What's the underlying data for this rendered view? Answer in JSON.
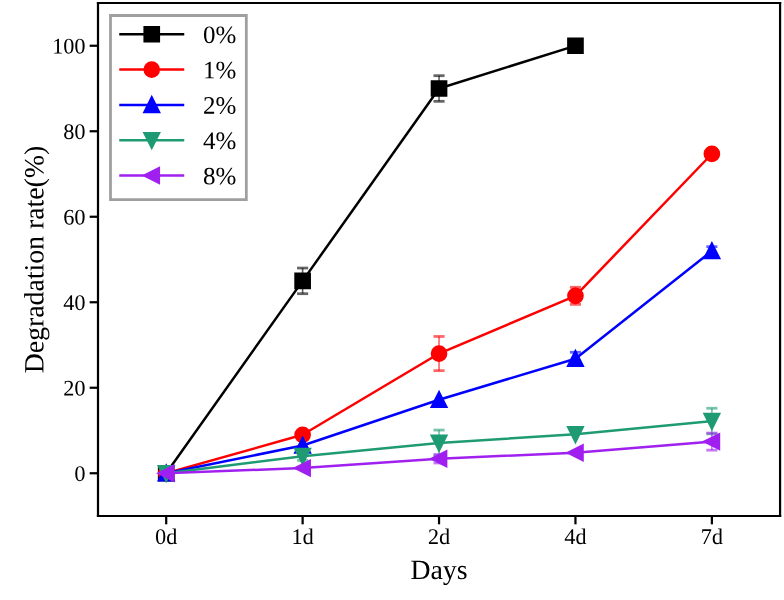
{
  "chart_data": {
    "type": "line",
    "xlabel": "Days",
    "ylabel": "Degradation rate(%)",
    "categories": [
      "0d",
      "1d",
      "2d",
      "4d",
      "7d"
    ],
    "ylim": [
      -10,
      110
    ],
    "yticks": [
      0,
      20,
      40,
      60,
      80,
      100
    ],
    "legend": "top left",
    "grid": false,
    "series": [
      {
        "name": "0%",
        "color": "#000000",
        "marker": "square",
        "values": [
          0,
          45,
          90,
          100,
          null
        ],
        "errors": [
          null,
          3,
          3,
          null,
          null
        ]
      },
      {
        "name": "1%",
        "color": "#ff0000",
        "marker": "circle",
        "values": [
          0,
          9,
          28,
          41.5,
          74.7
        ],
        "errors": [
          null,
          1,
          4,
          2,
          null
        ]
      },
      {
        "name": "2%",
        "color": "#0000ff",
        "marker": "triangle",
        "values": [
          0,
          6.5,
          17.2,
          26.8,
          52
        ],
        "errors": [
          null,
          null,
          null,
          1.5,
          1
        ]
      },
      {
        "name": "4%",
        "color": "#1f9b73",
        "marker": "triangle_down",
        "values": [
          0,
          4,
          7.1,
          9.1,
          12.2
        ],
        "errors": [
          null,
          1,
          3,
          null,
          3
        ]
      },
      {
        "name": "8%",
        "color": "#a020f0",
        "marker": "triangle_left",
        "values": [
          0,
          1.2,
          3.4,
          4.8,
          7.4
        ],
        "errors": [
          null,
          null,
          1,
          null,
          2
        ]
      }
    ]
  }
}
